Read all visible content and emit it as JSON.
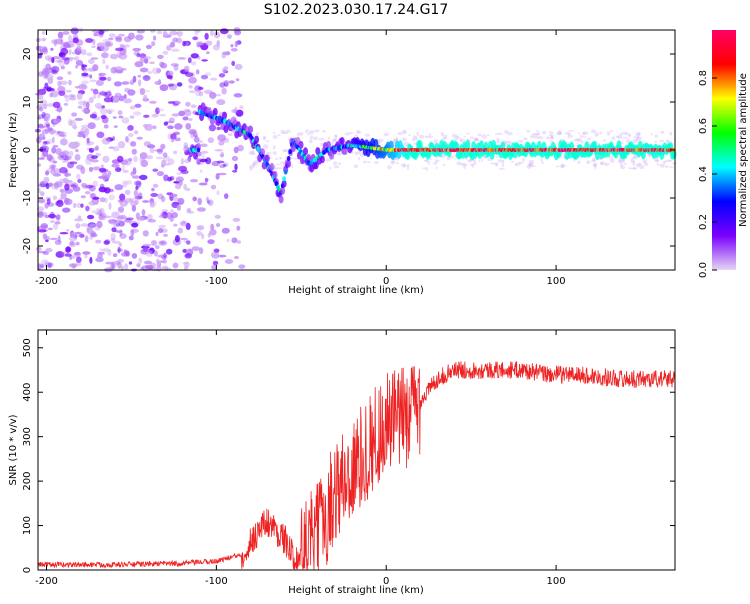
{
  "figure": {
    "title": "S102.2023.030.17.24.G17"
  },
  "chart_data": [
    {
      "type": "heatmap",
      "title": "",
      "xlabel": "Height of straight line (km)",
      "ylabel": "Frequency (Hz)",
      "xlim": [
        -205,
        170
      ],
      "ylim": [
        -25,
        25
      ],
      "xticks": [
        -200,
        -100,
        0,
        100
      ],
      "yticks": [
        -20,
        -10,
        0,
        10,
        20
      ],
      "colorbar": {
        "label": "Normalized spectral amplitude",
        "range": [
          0,
          1
        ],
        "ticks": [
          0.0,
          0.2,
          0.4,
          0.6,
          0.8
        ],
        "colormap": [
          "#e6d6f2",
          "#7a00ff",
          "#0000ff",
          "#00ffff",
          "#00ff00",
          "#ffff00",
          "#ff0000",
          "#ff0066"
        ]
      },
      "features": {
        "dominant_ridge": [
          {
            "x": -110,
            "y": 8
          },
          {
            "x": -95,
            "y": 6
          },
          {
            "x": -80,
            "y": 3
          },
          {
            "x": -70,
            "y": -3
          },
          {
            "x": -62,
            "y": -9
          },
          {
            "x": -55,
            "y": 2
          },
          {
            "x": -45,
            "y": -3
          },
          {
            "x": -35,
            "y": 0
          },
          {
            "x": -20,
            "y": 1
          },
          {
            "x": 0,
            "y": 0
          },
          {
            "x": 50,
            "y": 0
          },
          {
            "x": 100,
            "y": 0
          },
          {
            "x": 170,
            "y": 0
          }
        ]
      }
    },
    {
      "type": "line",
      "title": "",
      "xlabel": "Height of straight line (km)",
      "ylabel": "SNR (10 * v/v)",
      "xlim": [
        -205,
        170
      ],
      "ylim": [
        0,
        540
      ],
      "xticks": [
        -200,
        -100,
        0,
        100
      ],
      "yticks": [
        0,
        100,
        200,
        300,
        400,
        500
      ],
      "series": [
        {
          "color": "#ee2222",
          "envelope": [
            {
              "x": -205,
              "y": 12
            },
            {
              "x": -160,
              "y": 12
            },
            {
              "x": -120,
              "y": 15
            },
            {
              "x": -100,
              "y": 20
            },
            {
              "x": -85,
              "y": 35
            },
            {
              "x": -75,
              "y": 90
            },
            {
              "x": -70,
              "y": 110
            },
            {
              "x": -65,
              "y": 90
            },
            {
              "x": -60,
              "y": 70
            },
            {
              "x": -55,
              "y": 30
            },
            {
              "x": -50,
              "y": 30
            },
            {
              "x": -40,
              "y": 80
            },
            {
              "x": -30,
              "y": 180
            },
            {
              "x": -20,
              "y": 220
            },
            {
              "x": -10,
              "y": 280
            },
            {
              "x": 0,
              "y": 330
            },
            {
              "x": 10,
              "y": 340
            },
            {
              "x": 20,
              "y": 380
            },
            {
              "x": 30,
              "y": 430
            },
            {
              "x": 40,
              "y": 450
            },
            {
              "x": 60,
              "y": 450
            },
            {
              "x": 80,
              "y": 450
            },
            {
              "x": 95,
              "y": 440
            },
            {
              "x": 110,
              "y": 440
            },
            {
              "x": 140,
              "y": 430
            },
            {
              "x": 170,
              "y": 430
            }
          ]
        }
      ]
    }
  ]
}
